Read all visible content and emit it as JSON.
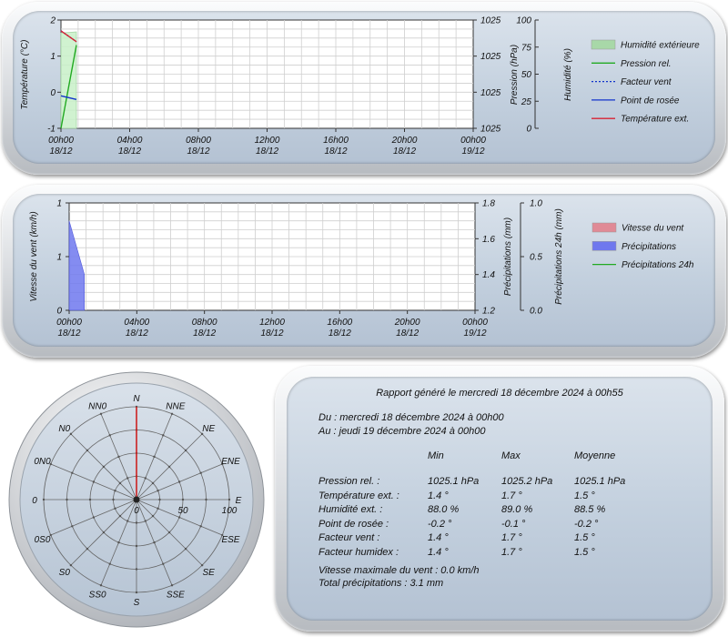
{
  "chart1": {
    "type": "line",
    "ylabel_left": "Température (°C)",
    "ylabel_mid": "Pression (hPa)",
    "ylabel_right": "Humidité (%)",
    "y_ticks_left": [
      "2",
      "1",
      "0",
      "-1"
    ],
    "y_ticks_mid": [
      "1025",
      "1025",
      "1025",
      "1025"
    ],
    "y_ticks_right": [
      "100",
      "75",
      "50",
      "25",
      "0"
    ],
    "ylim_left": [
      -1,
      2
    ],
    "ylim_right": [
      0,
      100
    ],
    "x_ticks": [
      {
        "time": "00h00",
        "date": "18/12"
      },
      {
        "time": "04h00",
        "date": "18/12"
      },
      {
        "time": "08h00",
        "date": "18/12"
      },
      {
        "time": "12h00",
        "date": "18/12"
      },
      {
        "time": "16h00",
        "date": "18/12"
      },
      {
        "time": "20h00",
        "date": "18/12"
      },
      {
        "time": "00h00",
        "date": "19/12"
      }
    ],
    "x_hours": [
      0,
      24
    ],
    "series": [
      {
        "name": "Humidité extérieure",
        "color": "#a8d8a8",
        "kind": "area",
        "axis": "right",
        "x": [
          0,
          0.9
        ],
        "y": [
          88,
          89
        ]
      },
      {
        "name": "Pression rel.",
        "color": "#22aa22",
        "kind": "line",
        "axis": "mid",
        "x": [
          0,
          0.9
        ],
        "y": [
          1025.1,
          1025.2
        ]
      },
      {
        "name": "Facteur vent",
        "color": "#1133cc",
        "kind": "dotted",
        "axis": "left",
        "x": [
          0,
          0.9
        ],
        "y": [
          1.7,
          1.4
        ]
      },
      {
        "name": "Point de rosée",
        "color": "#1133cc",
        "kind": "line",
        "axis": "left",
        "x": [
          0,
          0.9
        ],
        "y": [
          -0.1,
          -0.2
        ]
      },
      {
        "name": "Température ext.",
        "color": "#d82233",
        "kind": "line",
        "axis": "left",
        "x": [
          0,
          0.9
        ],
        "y": [
          1.7,
          1.4
        ]
      }
    ]
  },
  "chart2": {
    "type": "line",
    "ylabel_left": "Vitesse du vent (km/h)",
    "ylabel_mid": "Précipitations (mm)",
    "ylabel_right": "Précipitations 24h (mm)",
    "y_ticks_left": [
      "1",
      "1",
      "0"
    ],
    "y_ticks_mid": [
      "1.8",
      "1.6",
      "1.4",
      "1.2"
    ],
    "y_ticks_right": [
      "1.0",
      "0.5",
      "0.0"
    ],
    "ylim_mid": [
      1.2,
      1.8
    ],
    "x_ticks": [
      {
        "time": "00h00",
        "date": "18/12"
      },
      {
        "time": "04h00",
        "date": "18/12"
      },
      {
        "time": "08h00",
        "date": "18/12"
      },
      {
        "time": "12h00",
        "date": "18/12"
      },
      {
        "time": "16h00",
        "date": "18/12"
      },
      {
        "time": "20h00",
        "date": "18/12"
      },
      {
        "time": "00h00",
        "date": "19/12"
      }
    ],
    "series": [
      {
        "name": "Vitesse du vent",
        "color": "#e08a96",
        "kind": "area"
      },
      {
        "name": "Précipitations",
        "color": "#6f78ee",
        "kind": "area",
        "x": [
          0,
          0.9
        ],
        "y": [
          1.7,
          1.4
        ]
      },
      {
        "name": "Précipitations 24h",
        "color": "#22aa22",
        "kind": "line"
      }
    ]
  },
  "rose": {
    "directions": [
      "N",
      "NNE",
      "NE",
      "ENE",
      "E",
      "ESE",
      "SE",
      "SSE",
      "S",
      "SS0",
      "S0",
      "0S0",
      "0",
      "0N0",
      "N0",
      "NN0"
    ],
    "scale_labels": [
      "0",
      "50",
      "100"
    ],
    "needle_color": "#cc2222"
  },
  "report": {
    "title": "Rapport généré le mercredi 18 décembre 2024 à 00h55",
    "from": "Du : mercredi 18 décembre 2024 à 00h00",
    "to": "Au : jeudi 19 décembre 2024 à 00h00",
    "headers": [
      "Min",
      "Max",
      "Moyenne"
    ],
    "rows": [
      {
        "label": "Pression rel. :",
        "min": "1025.1 hPa",
        "max": "1025.2 hPa",
        "avg": "1025.1 hPa"
      },
      {
        "label": "Température ext. :",
        "min": "1.4 °",
        "max": "1.7 °",
        "avg": "1.5 °"
      },
      {
        "label": "Humidité ext. :",
        "min": "88.0 %",
        "max": "89.0 %",
        "avg": "88.5 %"
      },
      {
        "label": "Point de rosée :",
        "min": "-0.2 °",
        "max": "-0.1 °",
        "avg": "-0.2 °"
      },
      {
        "label": "Facteur vent :",
        "min": "1.4 °",
        "max": "1.7 °",
        "avg": "1.5 °"
      },
      {
        "label": "Facteur humidex :",
        "min": "1.4 °",
        "max": "1.7 °",
        "avg": "1.5 °"
      }
    ],
    "max_wind": "Vitesse maximale du vent : 0.0 km/h",
    "total_rain": "Total précipitations : 3.1 mm"
  }
}
